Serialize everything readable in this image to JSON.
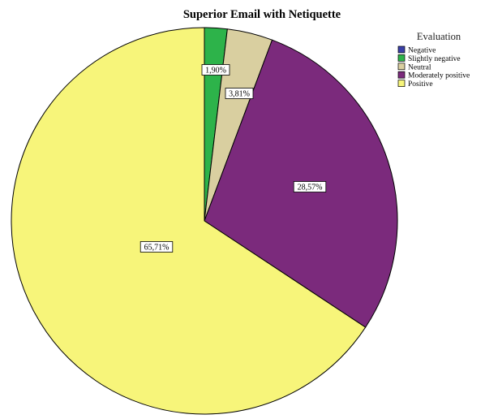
{
  "chart_data": {
    "type": "pie",
    "title": "Superior Email with Netiquette",
    "legend": {
      "title": "Evaluation",
      "placement": "top-right"
    },
    "slices": [
      {
        "label": "Negative",
        "value": 0.0,
        "value_label": "",
        "color": "#3a3fa8"
      },
      {
        "label": "Slightly negative",
        "value": 1.9,
        "value_label": "1,90%",
        "color": "#2db34a"
      },
      {
        "label": "Neutral",
        "value": 3.81,
        "value_label": "3,81%",
        "color": "#d9cfa0"
      },
      {
        "label": "Moderately positive",
        "value": 28.57,
        "value_label": "28,57%",
        "color": "#7b2a7c"
      },
      {
        "label": "Positive",
        "value": 65.71,
        "value_label": "65,71%",
        "color": "#f7f57a"
      }
    ],
    "start_angle": "12 o'clock",
    "direction": "clockwise"
  }
}
